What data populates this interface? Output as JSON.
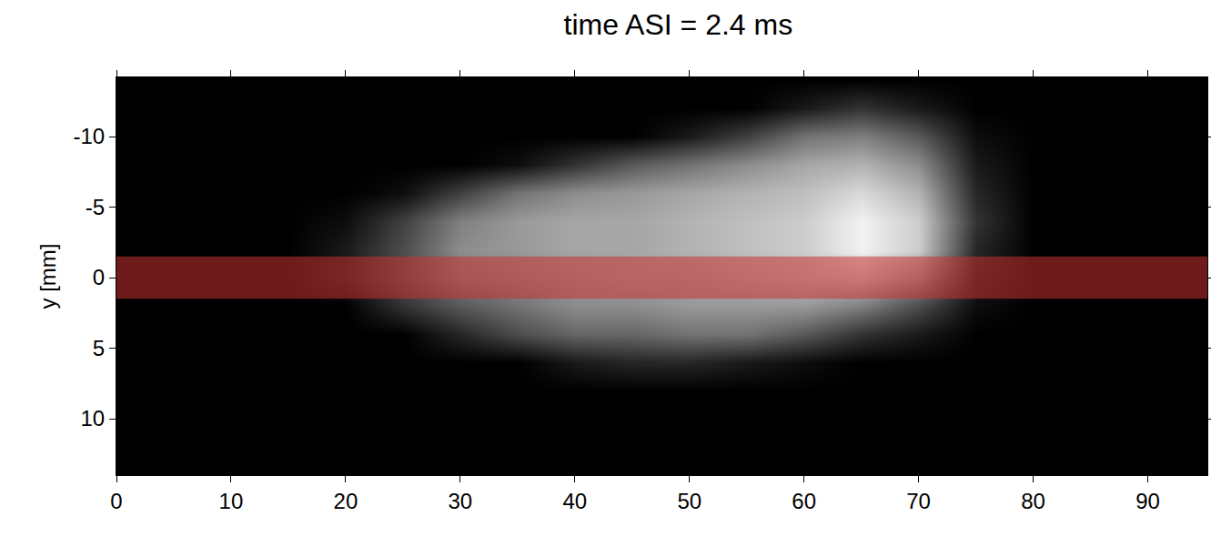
{
  "chart_data": {
    "type": "heatmap",
    "title": "time ASI = 2.4 ms",
    "y_label": "y [mm]",
    "x": [
      0,
      5,
      10,
      15,
      20,
      25,
      30,
      35,
      40,
      45,
      50,
      55,
      60,
      65,
      70,
      75,
      80,
      85,
      90,
      95
    ],
    "y": [
      -14,
      -12,
      -10,
      -8,
      -6,
      -4,
      -2,
      0,
      2,
      4,
      6,
      8,
      10,
      12,
      14
    ],
    "cells": [
      [
        0,
        0,
        0,
        0,
        0,
        0,
        0,
        0,
        0,
        0,
        0,
        0,
        0,
        0,
        0,
        0,
        0,
        0,
        0,
        0
      ],
      [
        0,
        0,
        0,
        0,
        0,
        0,
        0,
        0,
        0,
        0,
        0,
        0,
        0.1,
        0.2,
        0.1,
        0,
        0,
        0,
        0,
        0
      ],
      [
        0,
        0,
        0,
        0,
        0,
        0,
        0,
        0,
        0,
        0,
        0.1,
        0.25,
        0.45,
        0.5,
        0.35,
        0.05,
        0,
        0,
        0,
        0
      ],
      [
        0,
        0,
        0,
        0,
        0,
        0,
        0,
        0.05,
        0.2,
        0.35,
        0.45,
        0.55,
        0.65,
        0.7,
        0.55,
        0.1,
        0,
        0,
        0,
        0
      ],
      [
        0,
        0,
        0,
        0,
        0,
        0.05,
        0.25,
        0.45,
        0.55,
        0.6,
        0.65,
        0.7,
        0.75,
        0.85,
        0.7,
        0.15,
        0,
        0,
        0,
        0
      ],
      [
        0,
        0,
        0,
        0,
        0.05,
        0.25,
        0.5,
        0.6,
        0.65,
        0.65,
        0.7,
        0.75,
        0.8,
        0.95,
        0.8,
        0.2,
        0,
        0,
        0,
        0
      ],
      [
        0,
        0,
        0,
        0,
        0.1,
        0.3,
        0.55,
        0.6,
        0.65,
        0.65,
        0.7,
        0.75,
        0.8,
        0.95,
        0.8,
        0.15,
        0,
        0,
        0,
        0
      ],
      [
        0,
        0,
        0,
        0,
        0.1,
        0.3,
        0.5,
        0.55,
        0.6,
        0.65,
        0.65,
        0.7,
        0.75,
        0.8,
        0.6,
        0.1,
        0,
        0,
        0,
        0
      ],
      [
        0,
        0,
        0,
        0,
        0,
        0.2,
        0.35,
        0.45,
        0.55,
        0.55,
        0.6,
        0.6,
        0.6,
        0.5,
        0.3,
        0.05,
        0,
        0,
        0,
        0
      ],
      [
        0,
        0,
        0,
        0,
        0,
        0,
        0.15,
        0.3,
        0.4,
        0.4,
        0.45,
        0.45,
        0.35,
        0.2,
        0.1,
        0,
        0,
        0,
        0,
        0
      ],
      [
        0,
        0,
        0,
        0,
        0,
        0,
        0,
        0,
        0.1,
        0.15,
        0.15,
        0.1,
        0.05,
        0,
        0,
        0,
        0,
        0,
        0,
        0
      ],
      [
        0,
        0,
        0,
        0,
        0,
        0,
        0,
        0,
        0,
        0,
        0,
        0,
        0,
        0,
        0,
        0,
        0,
        0,
        0,
        0
      ],
      [
        0,
        0,
        0,
        0,
        0,
        0,
        0,
        0,
        0,
        0,
        0,
        0,
        0,
        0,
        0,
        0,
        0,
        0,
        0,
        0
      ],
      [
        0,
        0,
        0,
        0,
        0,
        0,
        0,
        0,
        0,
        0,
        0,
        0,
        0,
        0,
        0,
        0,
        0,
        0,
        0,
        0
      ],
      [
        0,
        0,
        0,
        0,
        0,
        0,
        0,
        0,
        0,
        0,
        0,
        0,
        0,
        0,
        0,
        0,
        0,
        0,
        0,
        0
      ]
    ],
    "zlim": [
      0,
      1
    ],
    "xlim": [
      0,
      95.2
    ],
    "xticks": [
      0,
      10,
      20,
      30,
      40,
      50,
      60,
      70,
      80,
      90
    ],
    "ylim": [
      14,
      -14.2
    ],
    "yticks": [
      -10,
      -5,
      0,
      5,
      10
    ],
    "band": {
      "y": [
        -1.5,
        1.5
      ],
      "color": "rgba(200, 50, 50, 0.55)"
    },
    "grid": false
  }
}
